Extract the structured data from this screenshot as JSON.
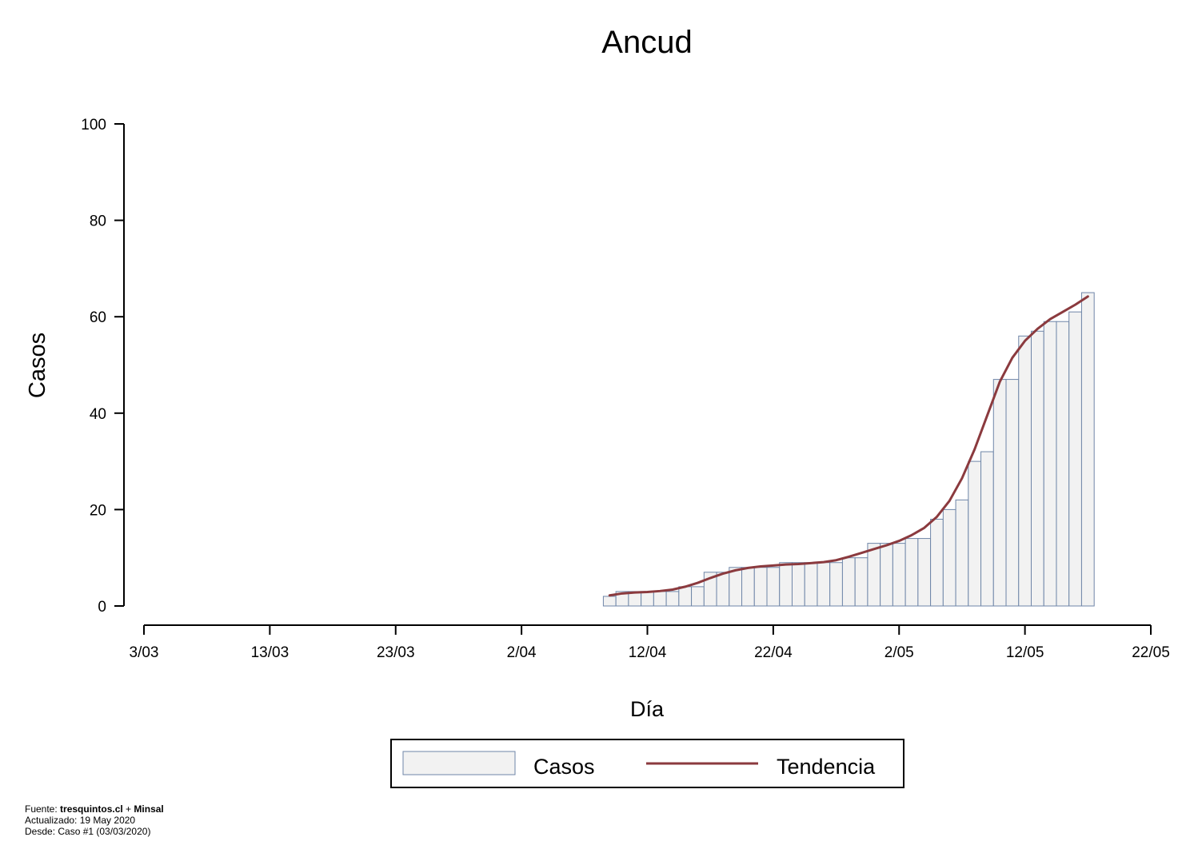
{
  "colors": {
    "bar_fill": "#f2f2f2",
    "bar_stroke": "#6f86a8",
    "trend_line": "#8b3a3e",
    "axis": "#000000"
  },
  "chart_data": {
    "type": "bar",
    "title": "Ancud",
    "xlabel": "Día",
    "ylabel": "Casos",
    "x_is_date": true,
    "ylim": [
      0,
      100
    ],
    "y_ticks": [
      0,
      20,
      40,
      60,
      80,
      100
    ],
    "x_range": [
      "2020-03-03",
      "2020-05-22"
    ],
    "x_ticks": [
      {
        "date": "2020-03-03",
        "label": "3/03"
      },
      {
        "date": "2020-03-13",
        "label": "13/03"
      },
      {
        "date": "2020-03-23",
        "label": "23/03"
      },
      {
        "date": "2020-04-02",
        "label": "2/04"
      },
      {
        "date": "2020-04-12",
        "label": "12/04"
      },
      {
        "date": "2020-04-22",
        "label": "22/04"
      },
      {
        "date": "2020-05-02",
        "label": "2/05"
      },
      {
        "date": "2020-05-12",
        "label": "12/05"
      },
      {
        "date": "2020-05-22",
        "label": "22/05"
      }
    ],
    "grid": false,
    "legend_position": "bottom-center",
    "series": [
      {
        "name": "Casos",
        "type": "bar",
        "points": [
          {
            "x": "2020-04-09",
            "y": 2
          },
          {
            "x": "2020-04-10",
            "y": 3
          },
          {
            "x": "2020-04-11",
            "y": 3
          },
          {
            "x": "2020-04-12",
            "y": 3
          },
          {
            "x": "2020-04-13",
            "y": 3
          },
          {
            "x": "2020-04-14",
            "y": 3
          },
          {
            "x": "2020-04-15",
            "y": 4
          },
          {
            "x": "2020-04-16",
            "y": 4
          },
          {
            "x": "2020-04-17",
            "y": 7
          },
          {
            "x": "2020-04-18",
            "y": 7
          },
          {
            "x": "2020-04-19",
            "y": 8
          },
          {
            "x": "2020-04-20",
            "y": 8
          },
          {
            "x": "2020-04-21",
            "y": 8
          },
          {
            "x": "2020-04-22",
            "y": 8
          },
          {
            "x": "2020-04-23",
            "y": 9
          },
          {
            "x": "2020-04-24",
            "y": 9
          },
          {
            "x": "2020-04-25",
            "y": 9
          },
          {
            "x": "2020-04-26",
            "y": 9
          },
          {
            "x": "2020-04-27",
            "y": 9
          },
          {
            "x": "2020-04-28",
            "y": 10
          },
          {
            "x": "2020-04-29",
            "y": 10
          },
          {
            "x": "2020-04-30",
            "y": 13
          },
          {
            "x": "2020-05-01",
            "y": 13
          },
          {
            "x": "2020-05-02",
            "y": 13
          },
          {
            "x": "2020-05-03",
            "y": 14
          },
          {
            "x": "2020-05-04",
            "y": 14
          },
          {
            "x": "2020-05-05",
            "y": 18
          },
          {
            "x": "2020-05-06",
            "y": 20
          },
          {
            "x": "2020-05-07",
            "y": 22
          },
          {
            "x": "2020-05-08",
            "y": 30
          },
          {
            "x": "2020-05-09",
            "y": 32
          },
          {
            "x": "2020-05-10",
            "y": 47
          },
          {
            "x": "2020-05-11",
            "y": 47
          },
          {
            "x": "2020-05-12",
            "y": 56
          },
          {
            "x": "2020-05-13",
            "y": 57
          },
          {
            "x": "2020-05-14",
            "y": 59
          },
          {
            "x": "2020-05-15",
            "y": 59
          },
          {
            "x": "2020-05-16",
            "y": 61
          },
          {
            "x": "2020-05-17",
            "y": 65
          }
        ]
      },
      {
        "name": "Tendencia",
        "type": "line",
        "points": [
          {
            "x": "2020-04-09",
            "y": 2.2
          },
          {
            "x": "2020-04-10",
            "y": 2.6
          },
          {
            "x": "2020-04-11",
            "y": 2.8
          },
          {
            "x": "2020-04-12",
            "y": 2.9
          },
          {
            "x": "2020-04-13",
            "y": 3.1
          },
          {
            "x": "2020-04-14",
            "y": 3.4
          },
          {
            "x": "2020-04-15",
            "y": 4.0
          },
          {
            "x": "2020-04-16",
            "y": 4.8
          },
          {
            "x": "2020-04-17",
            "y": 5.8
          },
          {
            "x": "2020-04-18",
            "y": 6.7
          },
          {
            "x": "2020-04-19",
            "y": 7.4
          },
          {
            "x": "2020-04-20",
            "y": 7.9
          },
          {
            "x": "2020-04-21",
            "y": 8.2
          },
          {
            "x": "2020-04-22",
            "y": 8.4
          },
          {
            "x": "2020-04-23",
            "y": 8.6
          },
          {
            "x": "2020-04-24",
            "y": 8.7
          },
          {
            "x": "2020-04-25",
            "y": 8.9
          },
          {
            "x": "2020-04-26",
            "y": 9.1
          },
          {
            "x": "2020-04-27",
            "y": 9.5
          },
          {
            "x": "2020-04-28",
            "y": 10.2
          },
          {
            "x": "2020-04-29",
            "y": 11.0
          },
          {
            "x": "2020-04-30",
            "y": 11.8
          },
          {
            "x": "2020-05-01",
            "y": 12.6
          },
          {
            "x": "2020-05-02",
            "y": 13.5
          },
          {
            "x": "2020-05-03",
            "y": 14.7
          },
          {
            "x": "2020-05-04",
            "y": 16.2
          },
          {
            "x": "2020-05-05",
            "y": 18.5
          },
          {
            "x": "2020-05-06",
            "y": 21.8
          },
          {
            "x": "2020-05-07",
            "y": 26.5
          },
          {
            "x": "2020-05-08",
            "y": 32.5
          },
          {
            "x": "2020-05-09",
            "y": 39.5
          },
          {
            "x": "2020-05-10",
            "y": 46.5
          },
          {
            "x": "2020-05-11",
            "y": 51.5
          },
          {
            "x": "2020-05-12",
            "y": 55.0
          },
          {
            "x": "2020-05-13",
            "y": 57.5
          },
          {
            "x": "2020-05-14",
            "y": 59.5
          },
          {
            "x": "2020-05-15",
            "y": 61.0
          },
          {
            "x": "2020-05-16",
            "y": 62.5
          },
          {
            "x": "2020-05-17",
            "y": 64.2
          }
        ]
      }
    ],
    "legend": {
      "items": [
        "Casos",
        "Tendencia"
      ]
    }
  },
  "footer": {
    "fuente_prefix": "Fuente: ",
    "fuente_source1": "tresquintos.cl",
    "fuente_plus": " + ",
    "fuente_source2": "Minsal",
    "actualizado": "Actualizado: 19 May 2020",
    "desde": "Desde: Caso #1  (03/03/2020)"
  }
}
